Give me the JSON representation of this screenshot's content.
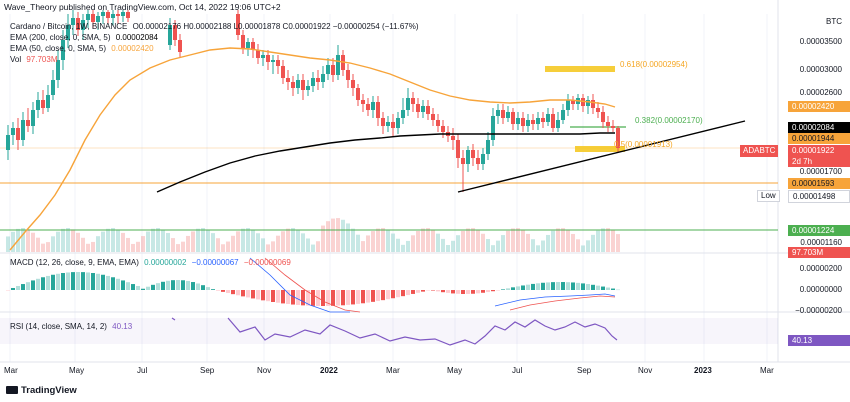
{
  "header": "Wave_Theory published on TradingView.com, Oct 14, 2022 19:06 UTC+2",
  "legend": {
    "symbol": "Cardano / Bitcoin, 1W, BINANCE",
    "ohlc": "O0.00002176  H0.00002188  L0.00001878  C0.00001922  −0.00000254 (−11.67%)",
    "ema200_label": "EMA (200, close, 0, SMA, 5)",
    "ema200_value": "0.00002084",
    "ema50_label": "EMA (50, close, 0, SMA, 5)",
    "ema50_value": "0.00002420",
    "vol_label": "Vol",
    "vol_value": "97.703M"
  },
  "price_axis": {
    "currency": "BTC",
    "labels": [
      "0.00003500",
      "0.00003000",
      "0.00002600",
      "0.00001700",
      "0.00001160"
    ]
  },
  "tags": {
    "ema50": "0.00002420",
    "ema200": "0.00002084",
    "tag1944": "0.00001944",
    "pair": "ADABTC",
    "current": "0.00001922",
    "countdown": "2d 7h",
    "support": "0.00001593",
    "low_label": "Low",
    "low": "0.00001498",
    "green_support": "0.00001224",
    "volume": "97.703M"
  },
  "fib": {
    "f618": "0.618(0.00002954)",
    "f382": "0.382(0.00002170)",
    "f5": "0.5(0.00001913)"
  },
  "macd": {
    "label": "MACD (12, 26, close, 9, EMA, EMA)",
    "hist": "0.00000002",
    "macd": "−0.00000067",
    "signal": "−0.00000069",
    "axis": [
      "0.00000200",
      "0.00000000",
      "−0.00000200"
    ]
  },
  "rsi": {
    "label": "RSI (14, close, SMA, 14, 2)",
    "value": "40.13",
    "tag": "40.13"
  },
  "time_axis": [
    "Mar",
    "May",
    "Jul",
    "Sep",
    "Nov",
    "2022",
    "Mar",
    "May",
    "Jul",
    "Sep",
    "Nov",
    "2023",
    "Mar"
  ],
  "brand": "TradingView",
  "colors": {
    "up": "#26a69a",
    "down": "#ef5350",
    "ema50": "#f7a43a",
    "ema200": "#000000",
    "rsi": "#7e57c2",
    "fib": "#f5c518"
  }
}
